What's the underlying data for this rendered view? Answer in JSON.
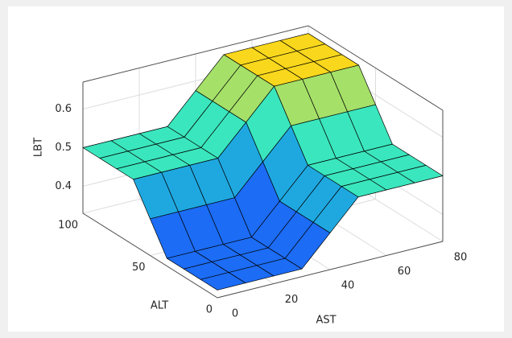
{
  "chart_data": {
    "type": "surface",
    "x": [
      0,
      10,
      20,
      30,
      40,
      50,
      60,
      70,
      80
    ],
    "y": [
      0,
      12.5,
      25,
      37.5,
      50,
      62.5,
      75,
      87.5,
      100
    ],
    "z": [
      [
        0.35,
        0.35,
        0.35,
        0.35,
        0.425,
        0.5,
        0.5,
        0.5,
        0.5
      ],
      [
        0.35,
        0.35,
        0.35,
        0.35,
        0.425,
        0.5,
        0.5,
        0.5,
        0.5
      ],
      [
        0.35,
        0.35,
        0.35,
        0.35,
        0.425,
        0.5,
        0.5,
        0.5,
        0.5
      ],
      [
        0.35,
        0.35,
        0.35,
        0.35,
        0.425,
        0.5,
        0.5,
        0.5,
        0.5
      ],
      [
        0.425,
        0.425,
        0.425,
        0.425,
        0.5,
        0.575,
        0.575,
        0.575,
        0.575
      ],
      [
        0.5,
        0.5,
        0.5,
        0.5,
        0.575,
        0.65,
        0.65,
        0.65,
        0.65
      ],
      [
        0.5,
        0.5,
        0.5,
        0.5,
        0.575,
        0.65,
        0.65,
        0.65,
        0.65
      ],
      [
        0.5,
        0.5,
        0.5,
        0.5,
        0.575,
        0.65,
        0.65,
        0.65,
        0.65
      ],
      [
        0.5,
        0.5,
        0.5,
        0.5,
        0.575,
        0.65,
        0.65,
        0.65,
        0.65
      ]
    ],
    "xlim": [
      0,
      80
    ],
    "ylim": [
      0,
      100
    ],
    "zlim": [
      0.33,
      0.67
    ],
    "xticks": [
      0,
      20,
      40,
      60,
      80
    ],
    "yticks": [
      0,
      50,
      100
    ],
    "zticks": [
      0.4,
      0.5,
      0.6
    ],
    "xlabel": "AST",
    "ylabel": "ALT",
    "zlabel": "LBT",
    "colormap": [
      "#1c6cf5",
      "#1fa8e0",
      "#3ae6bd",
      "#a5e068",
      "#f9d71c"
    ],
    "edge_color": "#000000",
    "grid": true
  }
}
